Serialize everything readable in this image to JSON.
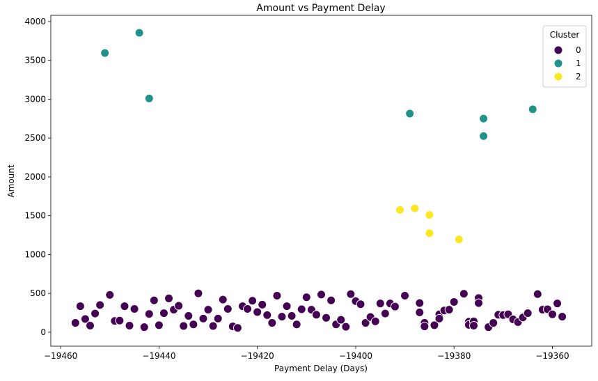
{
  "chart_data": {
    "type": "scatter",
    "title": "Amount vs Payment Delay",
    "xlabel": "Payment Delay (Days)",
    "ylabel": "Amount",
    "xlim": [
      -19462,
      -19352
    ],
    "ylim": [
      -180,
      4080
    ],
    "xticks": [
      -19460,
      -19440,
      -19420,
      -19400,
      -19380,
      -19360
    ],
    "yticks": [
      0,
      500,
      1000,
      1500,
      2000,
      2500,
      3000,
      3500,
      4000
    ],
    "grid": false,
    "legend": {
      "title": "Cluster",
      "placement": "top-right"
    },
    "series": [
      {
        "name": "0",
        "color": "#440154",
        "points": [
          [
            -19457,
            120
          ],
          [
            -19456,
            335
          ],
          [
            -19455,
            170
          ],
          [
            -19454,
            85
          ],
          [
            -19453,
            240
          ],
          [
            -19452,
            350
          ],
          [
            -19450,
            480
          ],
          [
            -19449,
            145
          ],
          [
            -19448,
            150
          ],
          [
            -19447,
            335
          ],
          [
            -19446,
            85
          ],
          [
            -19445,
            300
          ],
          [
            -19443,
            65
          ],
          [
            -19442,
            235
          ],
          [
            -19441,
            410
          ],
          [
            -19440,
            90
          ],
          [
            -19439,
            245
          ],
          [
            -19438,
            435
          ],
          [
            -19437,
            290
          ],
          [
            -19436,
            340
          ],
          [
            -19435,
            80
          ],
          [
            -19434,
            210
          ],
          [
            -19433,
            100
          ],
          [
            -19432,
            500
          ],
          [
            -19431,
            175
          ],
          [
            -19430,
            290
          ],
          [
            -19429,
            80
          ],
          [
            -19428,
            175
          ],
          [
            -19427,
            420
          ],
          [
            -19426,
            300
          ],
          [
            -19425,
            75
          ],
          [
            -19424,
            55
          ],
          [
            -19423,
            335
          ],
          [
            -19422,
            300
          ],
          [
            -19421,
            405
          ],
          [
            -19420,
            260
          ],
          [
            -19419,
            355
          ],
          [
            -19418,
            220
          ],
          [
            -19417,
            120
          ],
          [
            -19416,
            470
          ],
          [
            -19415,
            200
          ],
          [
            -19414,
            335
          ],
          [
            -19413,
            210
          ],
          [
            -19412,
            100
          ],
          [
            -19411,
            295
          ],
          [
            -19410,
            450
          ],
          [
            -19409,
            290
          ],
          [
            -19408,
            225
          ],
          [
            -19407,
            485
          ],
          [
            -19406,
            185
          ],
          [
            -19405,
            410
          ],
          [
            -19404,
            100
          ],
          [
            -19403,
            160
          ],
          [
            -19402,
            70
          ],
          [
            -19401,
            490
          ],
          [
            -19400,
            400
          ],
          [
            -19399,
            360
          ],
          [
            -19398,
            120
          ],
          [
            -19397,
            195
          ],
          [
            -19396,
            140
          ],
          [
            -19395,
            370
          ],
          [
            -19394,
            240
          ],
          [
            -19393,
            370
          ],
          [
            -19392,
            330
          ],
          [
            -19390,
            470
          ],
          [
            -19387,
            375
          ],
          [
            -19387,
            255
          ],
          [
            -19386,
            120
          ],
          [
            -19386,
            75
          ],
          [
            -19384,
            90
          ],
          [
            -19383,
            230
          ],
          [
            -19383,
            175
          ],
          [
            -19382,
            280
          ],
          [
            -19381,
            290
          ],
          [
            -19380,
            390
          ],
          [
            -19378,
            495
          ],
          [
            -19377,
            135
          ],
          [
            -19377,
            95
          ],
          [
            -19376,
            140
          ],
          [
            -19376,
            85
          ],
          [
            -19375,
            440
          ],
          [
            -19375,
            375
          ],
          [
            -19373,
            65
          ],
          [
            -19372,
            120
          ],
          [
            -19371,
            225
          ],
          [
            -19370,
            220
          ],
          [
            -19369,
            230
          ],
          [
            -19368,
            165
          ],
          [
            -19367,
            130
          ],
          [
            -19366,
            190
          ],
          [
            -19365,
            245
          ],
          [
            -19363,
            490
          ],
          [
            -19362,
            290
          ],
          [
            -19361,
            295
          ],
          [
            -19360,
            230
          ],
          [
            -19359,
            370
          ],
          [
            -19358,
            200
          ]
        ]
      },
      {
        "name": "1",
        "color": "#21918c",
        "points": [
          [
            -19451,
            3595
          ],
          [
            -19444,
            3855
          ],
          [
            -19442,
            3010
          ],
          [
            -19389,
            2815
          ],
          [
            -19374,
            2750
          ],
          [
            -19374,
            2525
          ],
          [
            -19364,
            2870
          ]
        ]
      },
      {
        "name": "2",
        "color": "#fde725",
        "points": [
          [
            -19391,
            1575
          ],
          [
            -19388,
            1595
          ],
          [
            -19385,
            1510
          ],
          [
            -19385,
            1275
          ],
          [
            -19379,
            1195
          ]
        ]
      }
    ]
  }
}
